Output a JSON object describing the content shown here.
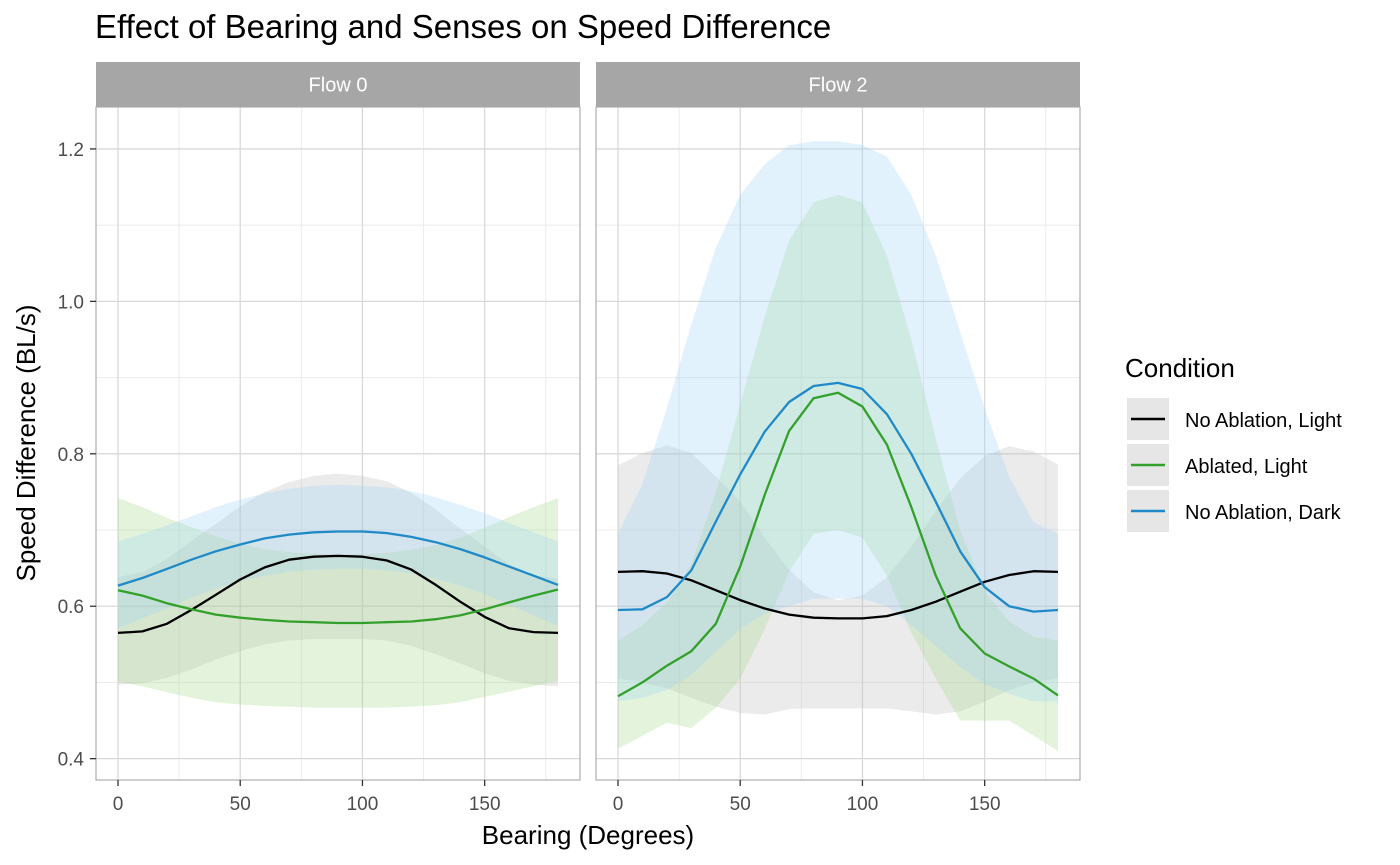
{
  "chart_data": {
    "type": "line",
    "title": "Effect of Bearing and Senses on Speed Difference",
    "xlabel": "Bearing (Degrees)",
    "ylabel": "Speed Difference (BL/s)",
    "xlim": [
      -9,
      189
    ],
    "ylim": [
      0.372,
      1.255
    ],
    "x_ticks": [
      0,
      50,
      100,
      150
    ],
    "y_ticks": [
      0.4,
      0.6,
      0.8,
      1.0,
      1.2
    ],
    "x_tick_labels": [
      "0",
      "50",
      "100",
      "150"
    ],
    "y_tick_labels": [
      "0.4",
      "0.6",
      "0.8",
      "1.0",
      "1.2"
    ],
    "grid": true,
    "legend": {
      "title": "Condition",
      "position": "right",
      "entries": [
        "No Ablation, Light",
        "Ablated, Light",
        "No Ablation, Dark"
      ]
    },
    "colors": {
      "No Ablation, Light": "#000000",
      "Ablated, Light": "#33a02c",
      "No Ablation, Dark": "#1f8ac7"
    },
    "ribbon_colors": {
      "No Ablation, Light": "#bdbdbd",
      "Ablated, Light": "#a6d98a",
      "No Ablation, Dark": "#9ed3f5"
    },
    "panels": [
      {
        "label": "Flow 0",
        "x": [
          0,
          10,
          20,
          30,
          40,
          50,
          60,
          70,
          80,
          90,
          100,
          110,
          120,
          130,
          140,
          150,
          160,
          170,
          180
        ],
        "series": [
          {
            "name": "No Ablation, Light",
            "values": [
              0.565,
              0.567,
              0.577,
              0.595,
              0.615,
              0.635,
              0.651,
              0.661,
              0.665,
              0.666,
              0.665,
              0.66,
              0.648,
              0.628,
              0.606,
              0.586,
              0.571,
              0.566,
              0.565
            ],
            "lower": [
              0.497,
              0.499,
              0.506,
              0.517,
              0.53,
              0.541,
              0.55,
              0.555,
              0.557,
              0.557,
              0.557,
              0.555,
              0.548,
              0.537,
              0.525,
              0.512,
              0.502,
              0.497,
              0.495
            ],
            "upper": [
              0.638,
              0.645,
              0.662,
              0.686,
              0.708,
              0.731,
              0.75,
              0.763,
              0.771,
              0.774,
              0.771,
              0.764,
              0.749,
              0.727,
              0.702,
              0.678,
              0.655,
              0.641,
              0.636
            ]
          },
          {
            "name": "Ablated, Light",
            "values": [
              0.621,
              0.614,
              0.604,
              0.596,
              0.589,
              0.585,
              0.582,
              0.58,
              0.579,
              0.578,
              0.578,
              0.579,
              0.58,
              0.583,
              0.588,
              0.596,
              0.605,
              0.614,
              0.622
            ],
            "lower": [
              0.501,
              0.495,
              0.487,
              0.48,
              0.474,
              0.471,
              0.469,
              0.468,
              0.467,
              0.467,
              0.467,
              0.467,
              0.468,
              0.47,
              0.474,
              0.481,
              0.488,
              0.495,
              0.502
            ],
            "upper": [
              0.742,
              0.73,
              0.716,
              0.704,
              0.692,
              0.682,
              0.675,
              0.671,
              0.669,
              0.668,
              0.668,
              0.67,
              0.674,
              0.68,
              0.69,
              0.703,
              0.717,
              0.73,
              0.742
            ]
          },
          {
            "name": "No Ablation, Dark",
            "values": [
              0.627,
              0.637,
              0.649,
              0.661,
              0.672,
              0.681,
              0.689,
              0.694,
              0.697,
              0.698,
              0.698,
              0.696,
              0.691,
              0.684,
              0.675,
              0.664,
              0.652,
              0.64,
              0.628
            ],
            "lower": [
              0.571,
              0.584,
              0.597,
              0.611,
              0.623,
              0.633,
              0.64,
              0.645,
              0.648,
              0.649,
              0.649,
              0.647,
              0.643,
              0.636,
              0.627,
              0.616,
              0.602,
              0.588,
              0.574
            ],
            "upper": [
              0.685,
              0.695,
              0.706,
              0.718,
              0.73,
              0.74,
              0.748,
              0.754,
              0.758,
              0.759,
              0.758,
              0.756,
              0.751,
              0.743,
              0.733,
              0.722,
              0.709,
              0.697,
              0.685
            ]
          }
        ]
      },
      {
        "label": "Flow 2",
        "x": [
          0,
          10,
          20,
          30,
          40,
          50,
          60,
          70,
          80,
          90,
          100,
          110,
          120,
          130,
          140,
          150,
          160,
          170,
          180
        ],
        "series": [
          {
            "name": "No Ablation, Light",
            "values": [
              0.645,
              0.646,
              0.643,
              0.634,
              0.621,
              0.608,
              0.597,
              0.589,
              0.585,
              0.584,
              0.584,
              0.587,
              0.595,
              0.606,
              0.619,
              0.632,
              0.641,
              0.646,
              0.645
            ],
            "lower": [
              0.505,
              0.5,
              0.492,
              0.48,
              0.468,
              0.46,
              0.458,
              0.465,
              0.466,
              0.466,
              0.466,
              0.466,
              0.462,
              0.458,
              0.462,
              0.475,
              0.49,
              0.5,
              0.505
            ],
            "upper": [
              0.785,
              0.801,
              0.811,
              0.801,
              0.77,
              0.738,
              0.69,
              0.648,
              0.618,
              0.608,
              0.614,
              0.638,
              0.678,
              0.725,
              0.768,
              0.797,
              0.81,
              0.803,
              0.786
            ]
          },
          {
            "name": "Ablated, Light",
            "values": [
              0.482,
              0.5,
              0.522,
              0.541,
              0.577,
              0.652,
              0.746,
              0.83,
              0.873,
              0.88,
              0.862,
              0.812,
              0.73,
              0.64,
              0.571,
              0.538,
              0.521,
              0.505,
              0.483
            ],
            "lower": [
              0.413,
              0.43,
              0.447,
              0.44,
              0.467,
              0.505,
              0.57,
              0.645,
              0.695,
              0.7,
              0.69,
              0.64,
              0.565,
              0.505,
              0.45,
              0.45,
              0.45,
              0.43,
              0.41
            ],
            "upper": [
              0.555,
              0.575,
              0.605,
              0.655,
              0.75,
              0.865,
              0.98,
              1.08,
              1.13,
              1.14,
              1.13,
              1.06,
              0.95,
              0.82,
              0.7,
              0.62,
              0.58,
              0.56,
              0.555
            ]
          },
          {
            "name": "No Ablation, Dark",
            "values": [
              0.595,
              0.596,
              0.612,
              0.647,
              0.711,
              0.773,
              0.829,
              0.868,
              0.889,
              0.893,
              0.885,
              0.852,
              0.8,
              0.737,
              0.672,
              0.625,
              0.6,
              0.593,
              0.595
            ],
            "lower": [
              0.475,
              0.48,
              0.49,
              0.51,
              0.54,
              0.57,
              0.59,
              0.6,
              0.61,
              0.61,
              0.61,
              0.6,
              0.575,
              0.548,
              0.52,
              0.498,
              0.485,
              0.475,
              0.475
            ],
            "upper": [
              0.695,
              0.76,
              0.86,
              0.97,
              1.07,
              1.14,
              1.18,
              1.205,
              1.21,
              1.21,
              1.205,
              1.19,
              1.14,
              1.06,
              0.96,
              0.86,
              0.77,
              0.71,
              0.695
            ]
          }
        ]
      }
    ]
  }
}
